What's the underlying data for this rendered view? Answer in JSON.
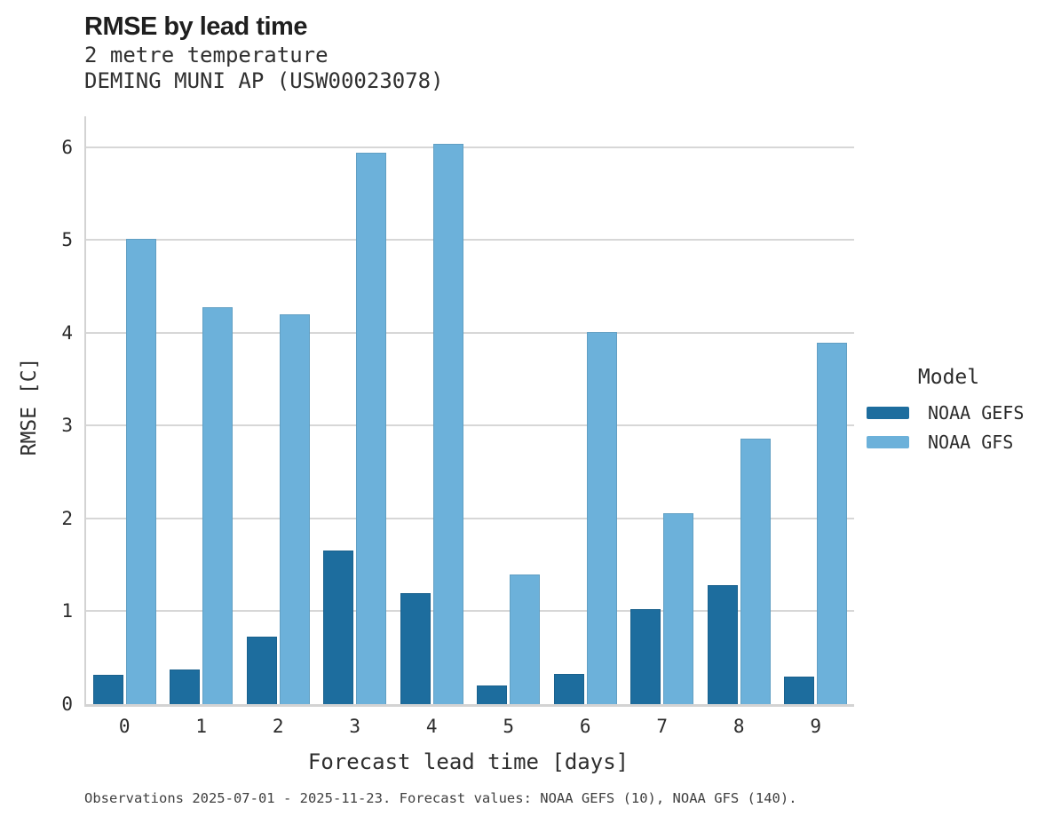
{
  "header": {
    "title": "RMSE by lead time",
    "subtitle_line1": "2 metre temperature",
    "subtitle_line2": "DEMING MUNI AP (USW00023078)"
  },
  "axes": {
    "x_label": "Forecast lead time [days]",
    "y_label": "RMSE [C]"
  },
  "legend": {
    "title": "Model",
    "entries": [
      {
        "label": "NOAA GEFS",
        "color": "#1d6d9e"
      },
      {
        "label": "NOAA GFS",
        "color": "#6cb1da"
      }
    ]
  },
  "footer": {
    "caption": "Observations 2025-07-01 - 2025-11-23. Forecast values: NOAA GEFS (10), NOAA GFS (140)."
  },
  "colors": {
    "background": "#ffffff",
    "grid": "#d7d7d7",
    "axis_line": "#d3d3d3",
    "gefs_dark_blue": "#1d6d9e",
    "gfs_light_blue": "#6cb1da"
  },
  "chart_data": {
    "type": "bar",
    "title": "RMSE by lead time",
    "subtitle": [
      "2 metre temperature",
      "DEMING MUNI AP (USW00023078)"
    ],
    "categories": [
      "0",
      "1",
      "2",
      "3",
      "4",
      "5",
      "6",
      "7",
      "8",
      "9"
    ],
    "series": [
      {
        "name": "NOAA GEFS",
        "color": "#1d6d9e",
        "values": [
          0.32,
          0.37,
          0.73,
          1.65,
          1.2,
          0.2,
          0.33,
          1.02,
          1.28,
          0.3
        ]
      },
      {
        "name": "NOAA GFS",
        "color": "#6cb1da",
        "values": [
          5.01,
          4.27,
          4.2,
          5.94,
          6.03,
          1.4,
          4.01,
          2.06,
          2.86,
          3.89
        ]
      }
    ],
    "xlabel": "Forecast lead time [days]",
    "ylabel": "RMSE [C]",
    "ylim": [
      0,
      6.33
    ],
    "yticks": [
      0,
      1,
      2,
      3,
      4,
      5,
      6
    ],
    "grid": true,
    "legend_title": "Model",
    "legend_position": "right",
    "caption": "Observations 2025-07-01 - 2025-11-23. Forecast values: NOAA GEFS (10), NOAA GFS (140)."
  }
}
